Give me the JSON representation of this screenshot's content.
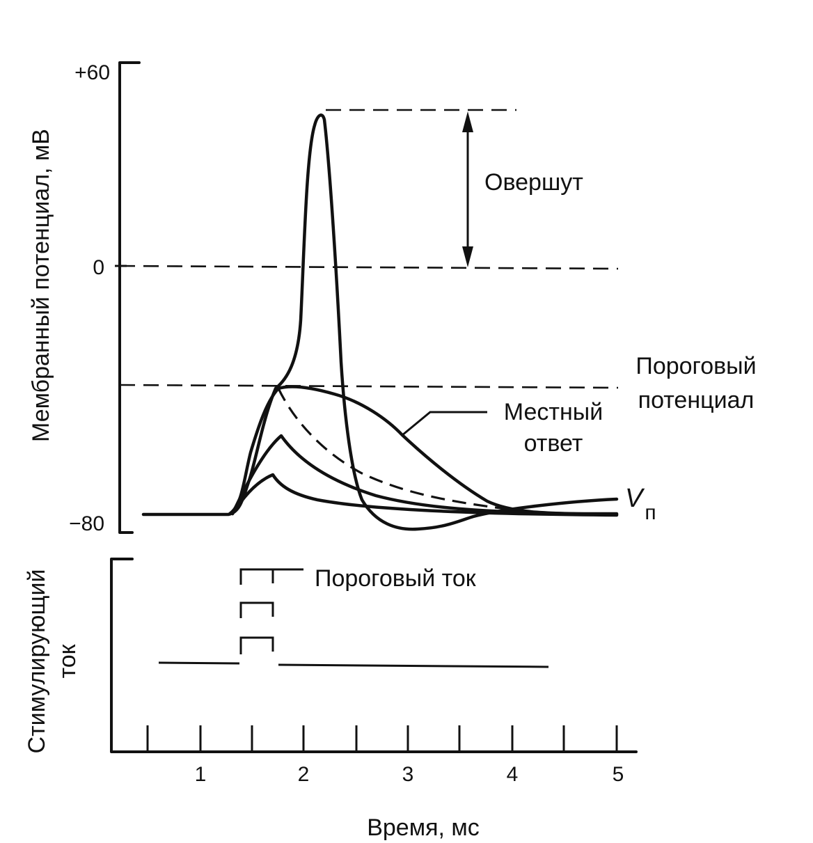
{
  "upper_panel": {
    "y_axis_label": "Мембранный потенциал, мВ",
    "y_ticks": [
      "+60",
      "0",
      "−80"
    ],
    "annotations": {
      "overshoot": "Овершут",
      "threshold_line1": "Пороговый",
      "threshold_line2": "потенциал",
      "local_line1": "Местный",
      "local_line2": "ответ",
      "rest_symbol": "V",
      "rest_subscript": "п"
    }
  },
  "lower_panel": {
    "y_axis_label_line1": "Стимулирующий",
    "y_axis_label_line2": "ток",
    "pulse_label": "Пороговый ток"
  },
  "x_axis": {
    "label": "Время, мс",
    "ticks": [
      "1",
      "2",
      "3",
      "4",
      "5"
    ]
  }
}
